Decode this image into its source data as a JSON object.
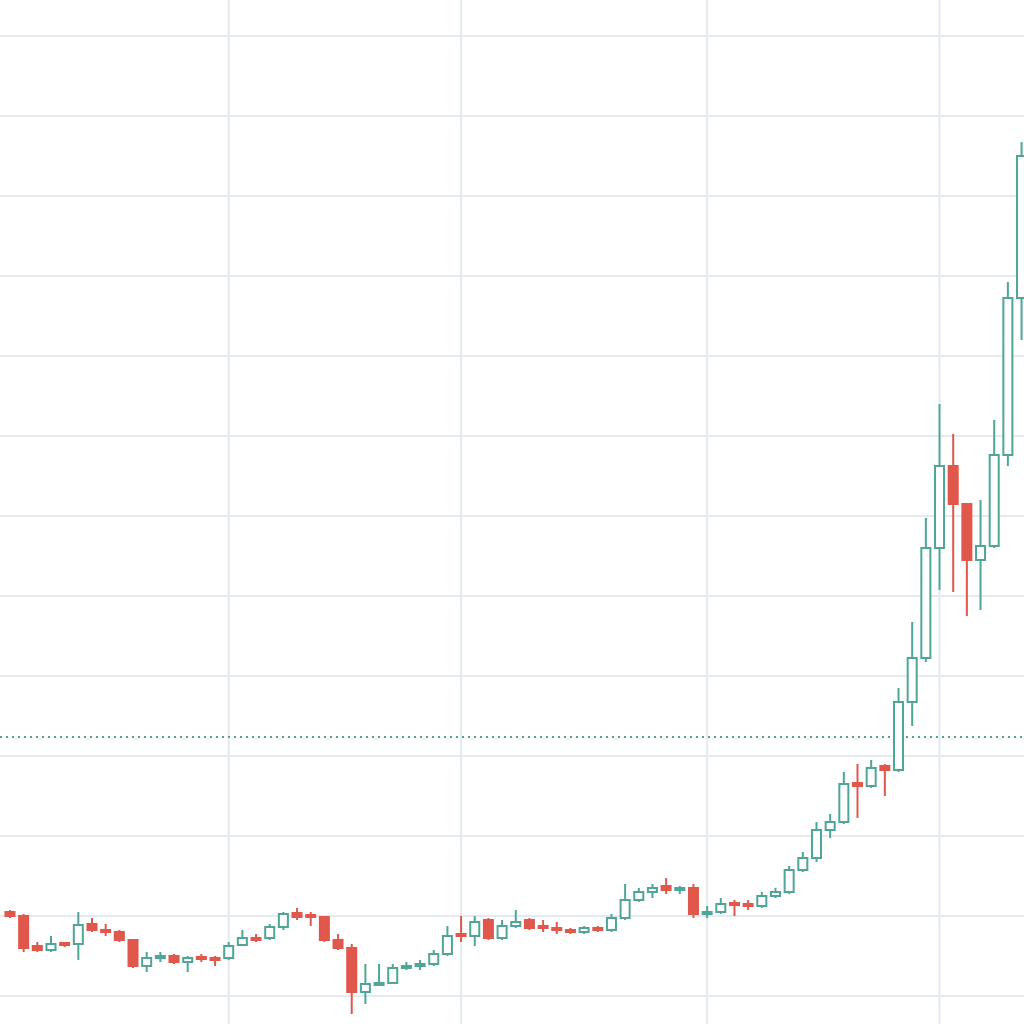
{
  "chart_data": {
    "type": "candlestick",
    "x": [
      0,
      1,
      2,
      3,
      4,
      5,
      6,
      7,
      8,
      9,
      10,
      11,
      12,
      13,
      14,
      15,
      16,
      17,
      18,
      19,
      20,
      21,
      22,
      23,
      24,
      25,
      26,
      27,
      28,
      29,
      30,
      31,
      32,
      33,
      34,
      35,
      36,
      37,
      38,
      39,
      40,
      41,
      42,
      43,
      44,
      45,
      46,
      47,
      48,
      49,
      50,
      51,
      52,
      53,
      54,
      55,
      56,
      57,
      58,
      59,
      60,
      61,
      62,
      63,
      64,
      65,
      66,
      67,
      68,
      69,
      70,
      71,
      72,
      73,
      74
    ],
    "open": [
      84,
      80,
      50,
      46,
      53,
      52,
      72,
      66,
      64,
      56,
      30,
      38,
      40,
      34,
      39,
      38,
      38,
      51,
      58,
      58,
      69,
      83,
      81,
      79,
      56,
      48,
      4,
      11,
      13,
      28,
      30,
      32,
      42,
      62,
      60,
      76,
      58,
      70,
      76,
      70,
      68,
      66,
      64,
      68,
      66,
      78,
      96,
      104,
      110,
      106,
      108,
      82,
      84,
      93,
      92,
      90,
      100,
      104,
      126,
      138,
      166,
      174,
      213,
      210,
      230,
      226,
      294,
      338,
      448,
      530,
      492,
      436,
      450,
      541,
      698
    ],
    "high": [
      86,
      82,
      54,
      60,
      54,
      84,
      78,
      72,
      66,
      56,
      44,
      44,
      42,
      40,
      42,
      40,
      54,
      66,
      62,
      72,
      84,
      88,
      84,
      80,
      62,
      52,
      32,
      32,
      32,
      34,
      36,
      46,
      70,
      80,
      80,
      78,
      76,
      86,
      78,
      76,
      74,
      68,
      70,
      70,
      82,
      112,
      108,
      112,
      118,
      110,
      112,
      90,
      98,
      96,
      96,
      104,
      108,
      130,
      144,
      174,
      182,
      224,
      232,
      236,
      232,
      308,
      374,
      478,
      592,
      562,
      492,
      496,
      576,
      714,
      854
    ],
    "low": [
      78,
      44,
      44,
      44,
      49,
      36,
      64,
      60,
      54,
      28,
      24,
      34,
      32,
      24,
      34,
      30,
      36,
      50,
      54,
      56,
      66,
      76,
      70,
      54,
      46,
      -18,
      -8,
      10,
      12,
      26,
      26,
      30,
      40,
      54,
      50,
      56,
      56,
      68,
      66,
      64,
      62,
      62,
      62,
      64,
      64,
      76,
      94,
      98,
      102,
      102,
      78,
      78,
      82,
      80,
      86,
      88,
      98,
      102,
      124,
      134,
      158,
      172,
      178,
      208,
      200,
      224,
      270,
      334,
      406,
      404,
      380,
      386,
      448,
      530,
      656
    ],
    "close": [
      80,
      48,
      46,
      52,
      51,
      71,
      66,
      64,
      56,
      30,
      38,
      40,
      34,
      38,
      37,
      36,
      50,
      58,
      56,
      69,
      82,
      79,
      79,
      56,
      48,
      4,
      12,
      13,
      28,
      30,
      32,
      42,
      60,
      60,
      74,
      58,
      70,
      74,
      68,
      68,
      66,
      64,
      68,
      66,
      78,
      96,
      104,
      108,
      106,
      108,
      82,
      84,
      92,
      91,
      90,
      100,
      104,
      126,
      138,
      166,
      174,
      212,
      210,
      228,
      226,
      294,
      338,
      448,
      530,
      492,
      436,
      450,
      541,
      698,
      840
    ],
    "up_color": "#4fa598",
    "down_color": "#e0574b",
    "xlim": [
      -0.73,
      74.18
    ],
    "xticks": [
      16,
      33,
      51,
      68
    ],
    "ylim": [
      -28,
      996
    ],
    "yticks": [
      0,
      80,
      160,
      240,
      320,
      400,
      480,
      560,
      640,
      720,
      800,
      880,
      960
    ],
    "grid": true,
    "grid_color": "#e4eaf1",
    "reference_line": {
      "value": 259,
      "color": "#4fa598",
      "style": "dotted"
    }
  }
}
